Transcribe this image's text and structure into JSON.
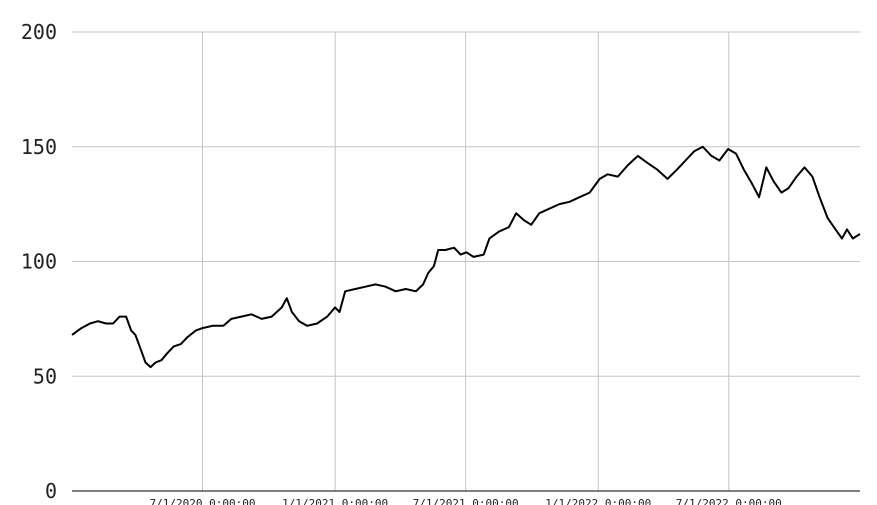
{
  "chart_data": {
    "type": "line",
    "title": "",
    "xlabel": "",
    "ylabel": "",
    "ylim": [
      0,
      200
    ],
    "xlim": [
      "2020-01-02",
      "2022-12-30"
    ],
    "grid": true,
    "legend": "none",
    "yticks": [
      {
        "value": 0,
        "label": "0"
      },
      {
        "value": 50,
        "label": "50"
      },
      {
        "value": 100,
        "label": "100"
      },
      {
        "value": 150,
        "label": "150"
      },
      {
        "value": 200,
        "label": "200"
      }
    ],
    "xticks": [
      {
        "date": "2020-07-01",
        "label": "7/1/2020 0:00:00"
      },
      {
        "date": "2021-01-01",
        "label": "1/1/2021 0:00:00"
      },
      {
        "date": "2021-07-01",
        "label": "7/1/2021 0:00:00"
      },
      {
        "date": "2022-01-01",
        "label": "1/1/2022 0:00:00"
      },
      {
        "date": "2022-07-01",
        "label": "7/1/2022 0:00:00"
      }
    ],
    "series": [
      {
        "color": "#000000",
        "points": [
          [
            "2020-01-02",
            68
          ],
          [
            "2020-01-15",
            71
          ],
          [
            "2020-01-27",
            73
          ],
          [
            "2020-02-07",
            74
          ],
          [
            "2020-02-18",
            73
          ],
          [
            "2020-02-28",
            73
          ],
          [
            "2020-03-08",
            76
          ],
          [
            "2020-03-17",
            76
          ],
          [
            "2020-03-24",
            70
          ],
          [
            "2020-03-30",
            68
          ],
          [
            "2020-04-06",
            62
          ],
          [
            "2020-04-13",
            56
          ],
          [
            "2020-04-20",
            54
          ],
          [
            "2020-04-27",
            56
          ],
          [
            "2020-05-05",
            57
          ],
          [
            "2020-05-13",
            60
          ],
          [
            "2020-05-22",
            63
          ],
          [
            "2020-06-01",
            64
          ],
          [
            "2020-06-10",
            67
          ],
          [
            "2020-06-22",
            70
          ],
          [
            "2020-07-01",
            71
          ],
          [
            "2020-07-15",
            72
          ],
          [
            "2020-07-30",
            72
          ],
          [
            "2020-08-10",
            75
          ],
          [
            "2020-08-24",
            76
          ],
          [
            "2020-09-07",
            77
          ],
          [
            "2020-09-21",
            75
          ],
          [
            "2020-10-05",
            76
          ],
          [
            "2020-10-19",
            80
          ],
          [
            "2020-10-26",
            84
          ],
          [
            "2020-11-02",
            78
          ],
          [
            "2020-11-12",
            74
          ],
          [
            "2020-11-23",
            72
          ],
          [
            "2020-12-07",
            73
          ],
          [
            "2020-12-21",
            76
          ],
          [
            "2021-01-01",
            80
          ],
          [
            "2021-01-07",
            78
          ],
          [
            "2021-01-15",
            87
          ],
          [
            "2021-01-29",
            88
          ],
          [
            "2021-02-12",
            89
          ],
          [
            "2021-02-26",
            90
          ],
          [
            "2021-03-12",
            89
          ],
          [
            "2021-03-26",
            87
          ],
          [
            "2021-04-09",
            88
          ],
          [
            "2021-04-23",
            87
          ],
          [
            "2021-05-03",
            90
          ],
          [
            "2021-05-10",
            95
          ],
          [
            "2021-05-18",
            98
          ],
          [
            "2021-05-24",
            105
          ],
          [
            "2021-06-03",
            105
          ],
          [
            "2021-06-15",
            106
          ],
          [
            "2021-06-24",
            103
          ],
          [
            "2021-07-02",
            104
          ],
          [
            "2021-07-12",
            102
          ],
          [
            "2021-07-26",
            103
          ],
          [
            "2021-08-03",
            110
          ],
          [
            "2021-08-16",
            113
          ],
          [
            "2021-08-30",
            115
          ],
          [
            "2021-09-09",
            121
          ],
          [
            "2021-09-20",
            118
          ],
          [
            "2021-09-30",
            116
          ],
          [
            "2021-10-11",
            121
          ],
          [
            "2021-10-25",
            123
          ],
          [
            "2021-11-08",
            125
          ],
          [
            "2021-11-22",
            126
          ],
          [
            "2021-12-06",
            128
          ],
          [
            "2021-12-20",
            130
          ],
          [
            "2022-01-03",
            136
          ],
          [
            "2022-01-14",
            138
          ],
          [
            "2022-01-28",
            137
          ],
          [
            "2022-02-11",
            142
          ],
          [
            "2022-02-25",
            146
          ],
          [
            "2022-03-10",
            143
          ],
          [
            "2022-03-24",
            140
          ],
          [
            "2022-04-07",
            136
          ],
          [
            "2022-04-20",
            140
          ],
          [
            "2022-05-02",
            144
          ],
          [
            "2022-05-14",
            148
          ],
          [
            "2022-05-26",
            150
          ],
          [
            "2022-06-07",
            146
          ],
          [
            "2022-06-18",
            144
          ],
          [
            "2022-06-30",
            149
          ],
          [
            "2022-07-11",
            147
          ],
          [
            "2022-07-22",
            140
          ],
          [
            "2022-08-02",
            134
          ],
          [
            "2022-08-12",
            128
          ],
          [
            "2022-08-22",
            141
          ],
          [
            "2022-09-01",
            135
          ],
          [
            "2022-09-12",
            130
          ],
          [
            "2022-09-22",
            132
          ],
          [
            "2022-10-03",
            137
          ],
          [
            "2022-10-14",
            141
          ],
          [
            "2022-10-25",
            137
          ],
          [
            "2022-11-04",
            128
          ],
          [
            "2022-11-15",
            119
          ],
          [
            "2022-11-26",
            114
          ],
          [
            "2022-12-05",
            110
          ],
          [
            "2022-12-12",
            114
          ],
          [
            "2022-12-20",
            110
          ],
          [
            "2022-12-30",
            112
          ]
        ]
      }
    ]
  }
}
